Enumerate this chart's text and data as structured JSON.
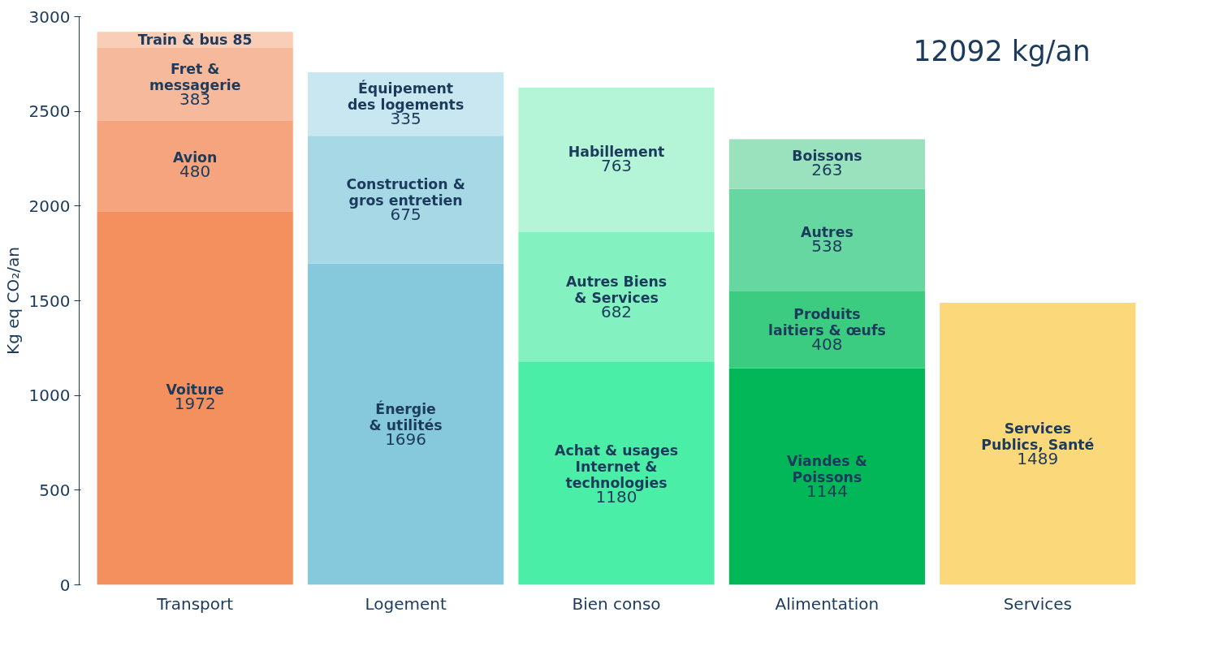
{
  "chart_data": {
    "type": "bar",
    "stacked": true,
    "ylabel": "Kg eq CO₂/an",
    "categories": [
      "Transport",
      "Logement",
      "Bien conso",
      "Alimentation",
      "Services"
    ],
    "ylim": [
      0,
      3000
    ],
    "yticks": [
      0,
      500,
      1000,
      1500,
      2000,
      2500,
      3000
    ],
    "grid": false,
    "annotations": [
      "12092 kg/an"
    ],
    "series": [
      {
        "values": [
          1972,
          1696,
          1180,
          1144,
          1489
        ],
        "colors": [
          "#f4905e",
          "#86c9dc",
          "#4aeea6",
          "#02b758",
          "#fbd97a"
        ],
        "value_labels": [
          "Voiture\n1972",
          "Énergie\n& utilités\n1696",
          "Achat & usages\nInternet &\ntechnologies\n1180",
          "Viandes &\nPoissons\n1144",
          "Services\nPublics, Santé\n1489"
        ]
      },
      {
        "values": [
          480,
          675,
          682,
          408,
          null
        ],
        "colors": [
          "#f5a47e",
          "#a7d8e6",
          "#84f2c0",
          "#3bcc7f",
          null
        ],
        "value_labels": [
          "Avion\n480",
          "Construction &\ngros entretien\n675",
          "Autres Biens\n& Services\n682",
          "Produits\nlaitiers & œufs\n408",
          null
        ]
      },
      {
        "values": [
          383,
          335,
          763,
          538,
          null
        ],
        "colors": [
          "#f7b99b",
          "#c9e7f0",
          "#b4f5d8",
          "#66d7a0",
          null
        ],
        "value_labels": [
          "Fret &\nmessagerie\n383",
          "Équipement\ndes logements\n335",
          "Habillement\n763",
          "Autres\n538",
          null
        ]
      },
      {
        "values": [
          85,
          null,
          null,
          263,
          null
        ],
        "colors": [
          "#f9cdb6",
          null,
          null,
          "#99e2bd",
          null
        ],
        "value_labels": [
          "Train & bus 85",
          null,
          null,
          "Boissons\n263",
          null
        ]
      }
    ]
  }
}
